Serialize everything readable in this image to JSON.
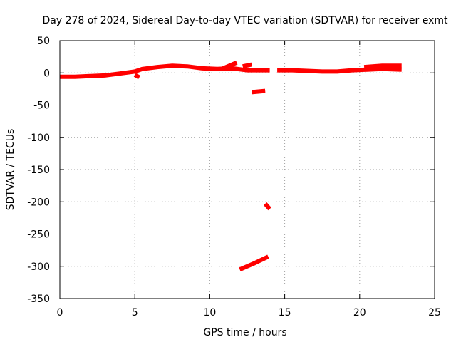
{
  "chart_data": {
    "type": "scatter",
    "title": "Day 278 of 2024, Sidereal Day-to-day VTEC variation (SDTVAR) for receiver exmt",
    "xlabel": "GPS time / hours",
    "ylabel": "SDTVAR / TECUs",
    "xlim": [
      0,
      25
    ],
    "ylim": [
      -350,
      50
    ],
    "xticks": [
      0,
      5,
      10,
      15,
      20,
      25
    ],
    "yticks": [
      -350,
      -300,
      -250,
      -200,
      -150,
      -100,
      -50,
      0,
      50
    ],
    "grid": true,
    "legend": "none",
    "series": [
      {
        "color": "#ff0000",
        "segments": [
          [
            [
              0.0,
              -6
            ],
            [
              1.0,
              -6
            ],
            [
              2.0,
              -5
            ],
            [
              3.0,
              -4
            ],
            [
              4.0,
              -1
            ],
            [
              5.0,
              2
            ],
            [
              5.5,
              6
            ],
            [
              6.5,
              9
            ],
            [
              7.5,
              11
            ],
            [
              8.5,
              10
            ],
            [
              9.5,
              7
            ],
            [
              10.5,
              6
            ],
            [
              11.5,
              7
            ],
            [
              12.5,
              4
            ],
            [
              13.5,
              4
            ],
            [
              14.0,
              4
            ]
          ],
          [
            [
              5.0,
              -3
            ],
            [
              5.3,
              -7
            ]
          ],
          [
            [
              10.8,
              6
            ],
            [
              11.4,
              12
            ],
            [
              11.8,
              16
            ]
          ],
          [
            [
              12.2,
              10
            ],
            [
              12.8,
              13
            ]
          ],
          [
            [
              14.5,
              4
            ],
            [
              15.5,
              4
            ],
            [
              16.5,
              3
            ],
            [
              17.5,
              2
            ],
            [
              18.5,
              2
            ],
            [
              19.5,
              4
            ],
            [
              20.5,
              5
            ],
            [
              21.5,
              6
            ],
            [
              22.8,
              5
            ]
          ],
          [
            [
              20.3,
              9
            ],
            [
              21.5,
              11
            ],
            [
              22.8,
              11
            ]
          ],
          [
            [
              12.8,
              -30
            ],
            [
              13.7,
              -28
            ]
          ],
          [
            [
              13.7,
              -203
            ],
            [
              14.0,
              -211
            ]
          ],
          [
            [
              12.0,
              -305
            ],
            [
              13.0,
              -295
            ],
            [
              13.9,
              -285
            ]
          ]
        ]
      }
    ]
  }
}
